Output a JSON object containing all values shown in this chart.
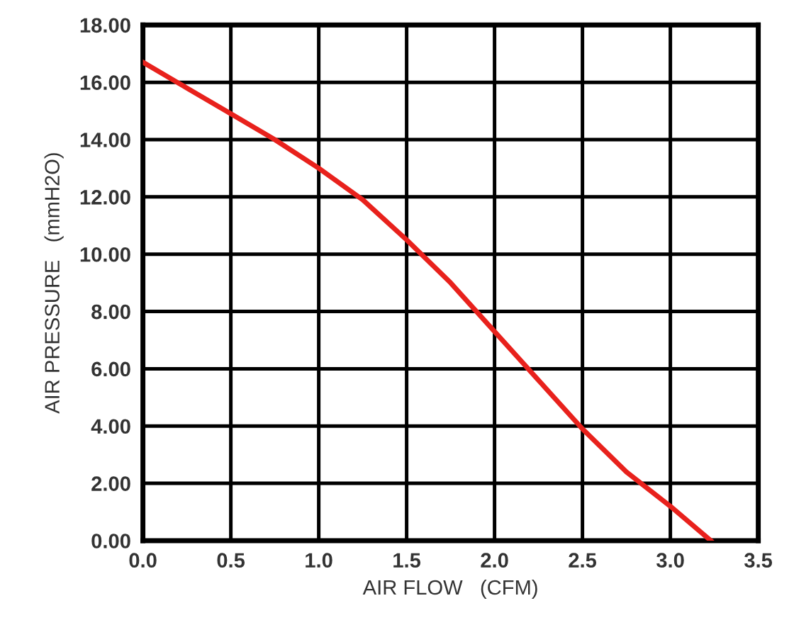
{
  "chart_data": {
    "type": "line",
    "xlabel": "AIR FLOW   (CFM)",
    "ylabel": "AIR PRESSURE   (mmH2O)",
    "x": [
      0,
      0.25,
      0.5,
      0.75,
      1.0,
      1.25,
      1.5,
      1.75,
      2.0,
      2.25,
      2.5,
      2.75,
      3.0,
      3.23
    ],
    "series": [
      {
        "color": "#e8211c",
        "values": [
          16.7,
          15.8,
          14.9,
          14.0,
          13.0,
          11.9,
          10.5,
          9.0,
          7.3,
          5.6,
          3.9,
          2.4,
          1.2,
          0
        ]
      }
    ],
    "xlim": [
      0,
      3.5
    ],
    "ylim": [
      0,
      18
    ],
    "xticks": [
      {
        "value": 0,
        "label": "0.0"
      },
      {
        "value": 0.5,
        "label": "0.5"
      },
      {
        "value": 1,
        "label": "1.0"
      },
      {
        "value": 1.5,
        "label": "1.5"
      },
      {
        "value": 2,
        "label": "2.0"
      },
      {
        "value": 2.5,
        "label": "2.5"
      },
      {
        "value": 3,
        "label": "3.0"
      },
      {
        "value": 3.5,
        "label": "3.5"
      }
    ],
    "yticks": [
      {
        "value": 0,
        "label": "0.00"
      },
      {
        "value": 2,
        "label": "2.00"
      },
      {
        "value": 4,
        "label": "4.00"
      },
      {
        "value": 6,
        "label": "6.00"
      },
      {
        "value": 8,
        "label": "8.00"
      },
      {
        "value": 10,
        "label": "10.00"
      },
      {
        "value": 12,
        "label": "12.00"
      },
      {
        "value": 14,
        "label": "14.00"
      },
      {
        "value": 16,
        "label": "16.00"
      },
      {
        "value": 18,
        "label": "18.00"
      }
    ],
    "grid": true,
    "marker": "none",
    "line_style": "solid"
  }
}
